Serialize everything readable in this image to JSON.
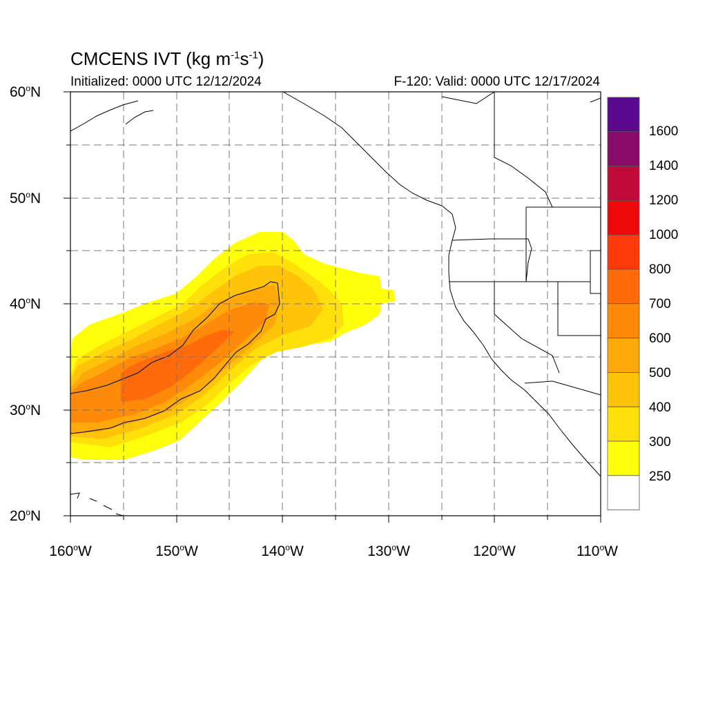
{
  "title": {
    "main": "CMCENS IVT (kg m",
    "sup1": "-1",
    "mid": "s",
    "sup2": "-1",
    "end": ")"
  },
  "init_text": "Initialized: 0000 UTC 12/12/2024",
  "valid_text": "F-120: Valid: 0000 UTC 12/17/2024",
  "lat_labels": [
    {
      "num": "60",
      "deg": "o",
      "dir": "N"
    },
    {
      "num": "50",
      "deg": "o",
      "dir": "N"
    },
    {
      "num": "40",
      "deg": "o",
      "dir": "N"
    },
    {
      "num": "30",
      "deg": "o",
      "dir": "N"
    },
    {
      "num": "20",
      "deg": "o",
      "dir": "N"
    }
  ],
  "lon_labels": [
    {
      "num": "160",
      "deg": "o",
      "dir": "W"
    },
    {
      "num": "150",
      "deg": "o",
      "dir": "W"
    },
    {
      "num": "140",
      "deg": "o",
      "dir": "W"
    },
    {
      "num": "130",
      "deg": "o",
      "dir": "W"
    },
    {
      "num": "120",
      "deg": "o",
      "dir": "W"
    },
    {
      "num": "110",
      "deg": "o",
      "dir": "W"
    }
  ],
  "colorbar": {
    "labels": [
      "1600",
      "1400",
      "1200",
      "1000",
      "800",
      "700",
      "600",
      "500",
      "400",
      "300",
      "250"
    ],
    "colors": [
      "#5b0a8f",
      "#8a0a6a",
      "#c00a3a",
      "#ee0a0a",
      "#ff3a0a",
      "#ff6a0a",
      "#ff8a0a",
      "#ffa80a",
      "#ffc40a",
      "#ffe00a",
      "#ffff0a",
      "#ffffff"
    ]
  },
  "map_extent": {
    "lon_min": -160,
    "lon_max": -110,
    "lat_min": 20,
    "lat_max": 60
  },
  "contour_level": 500
}
